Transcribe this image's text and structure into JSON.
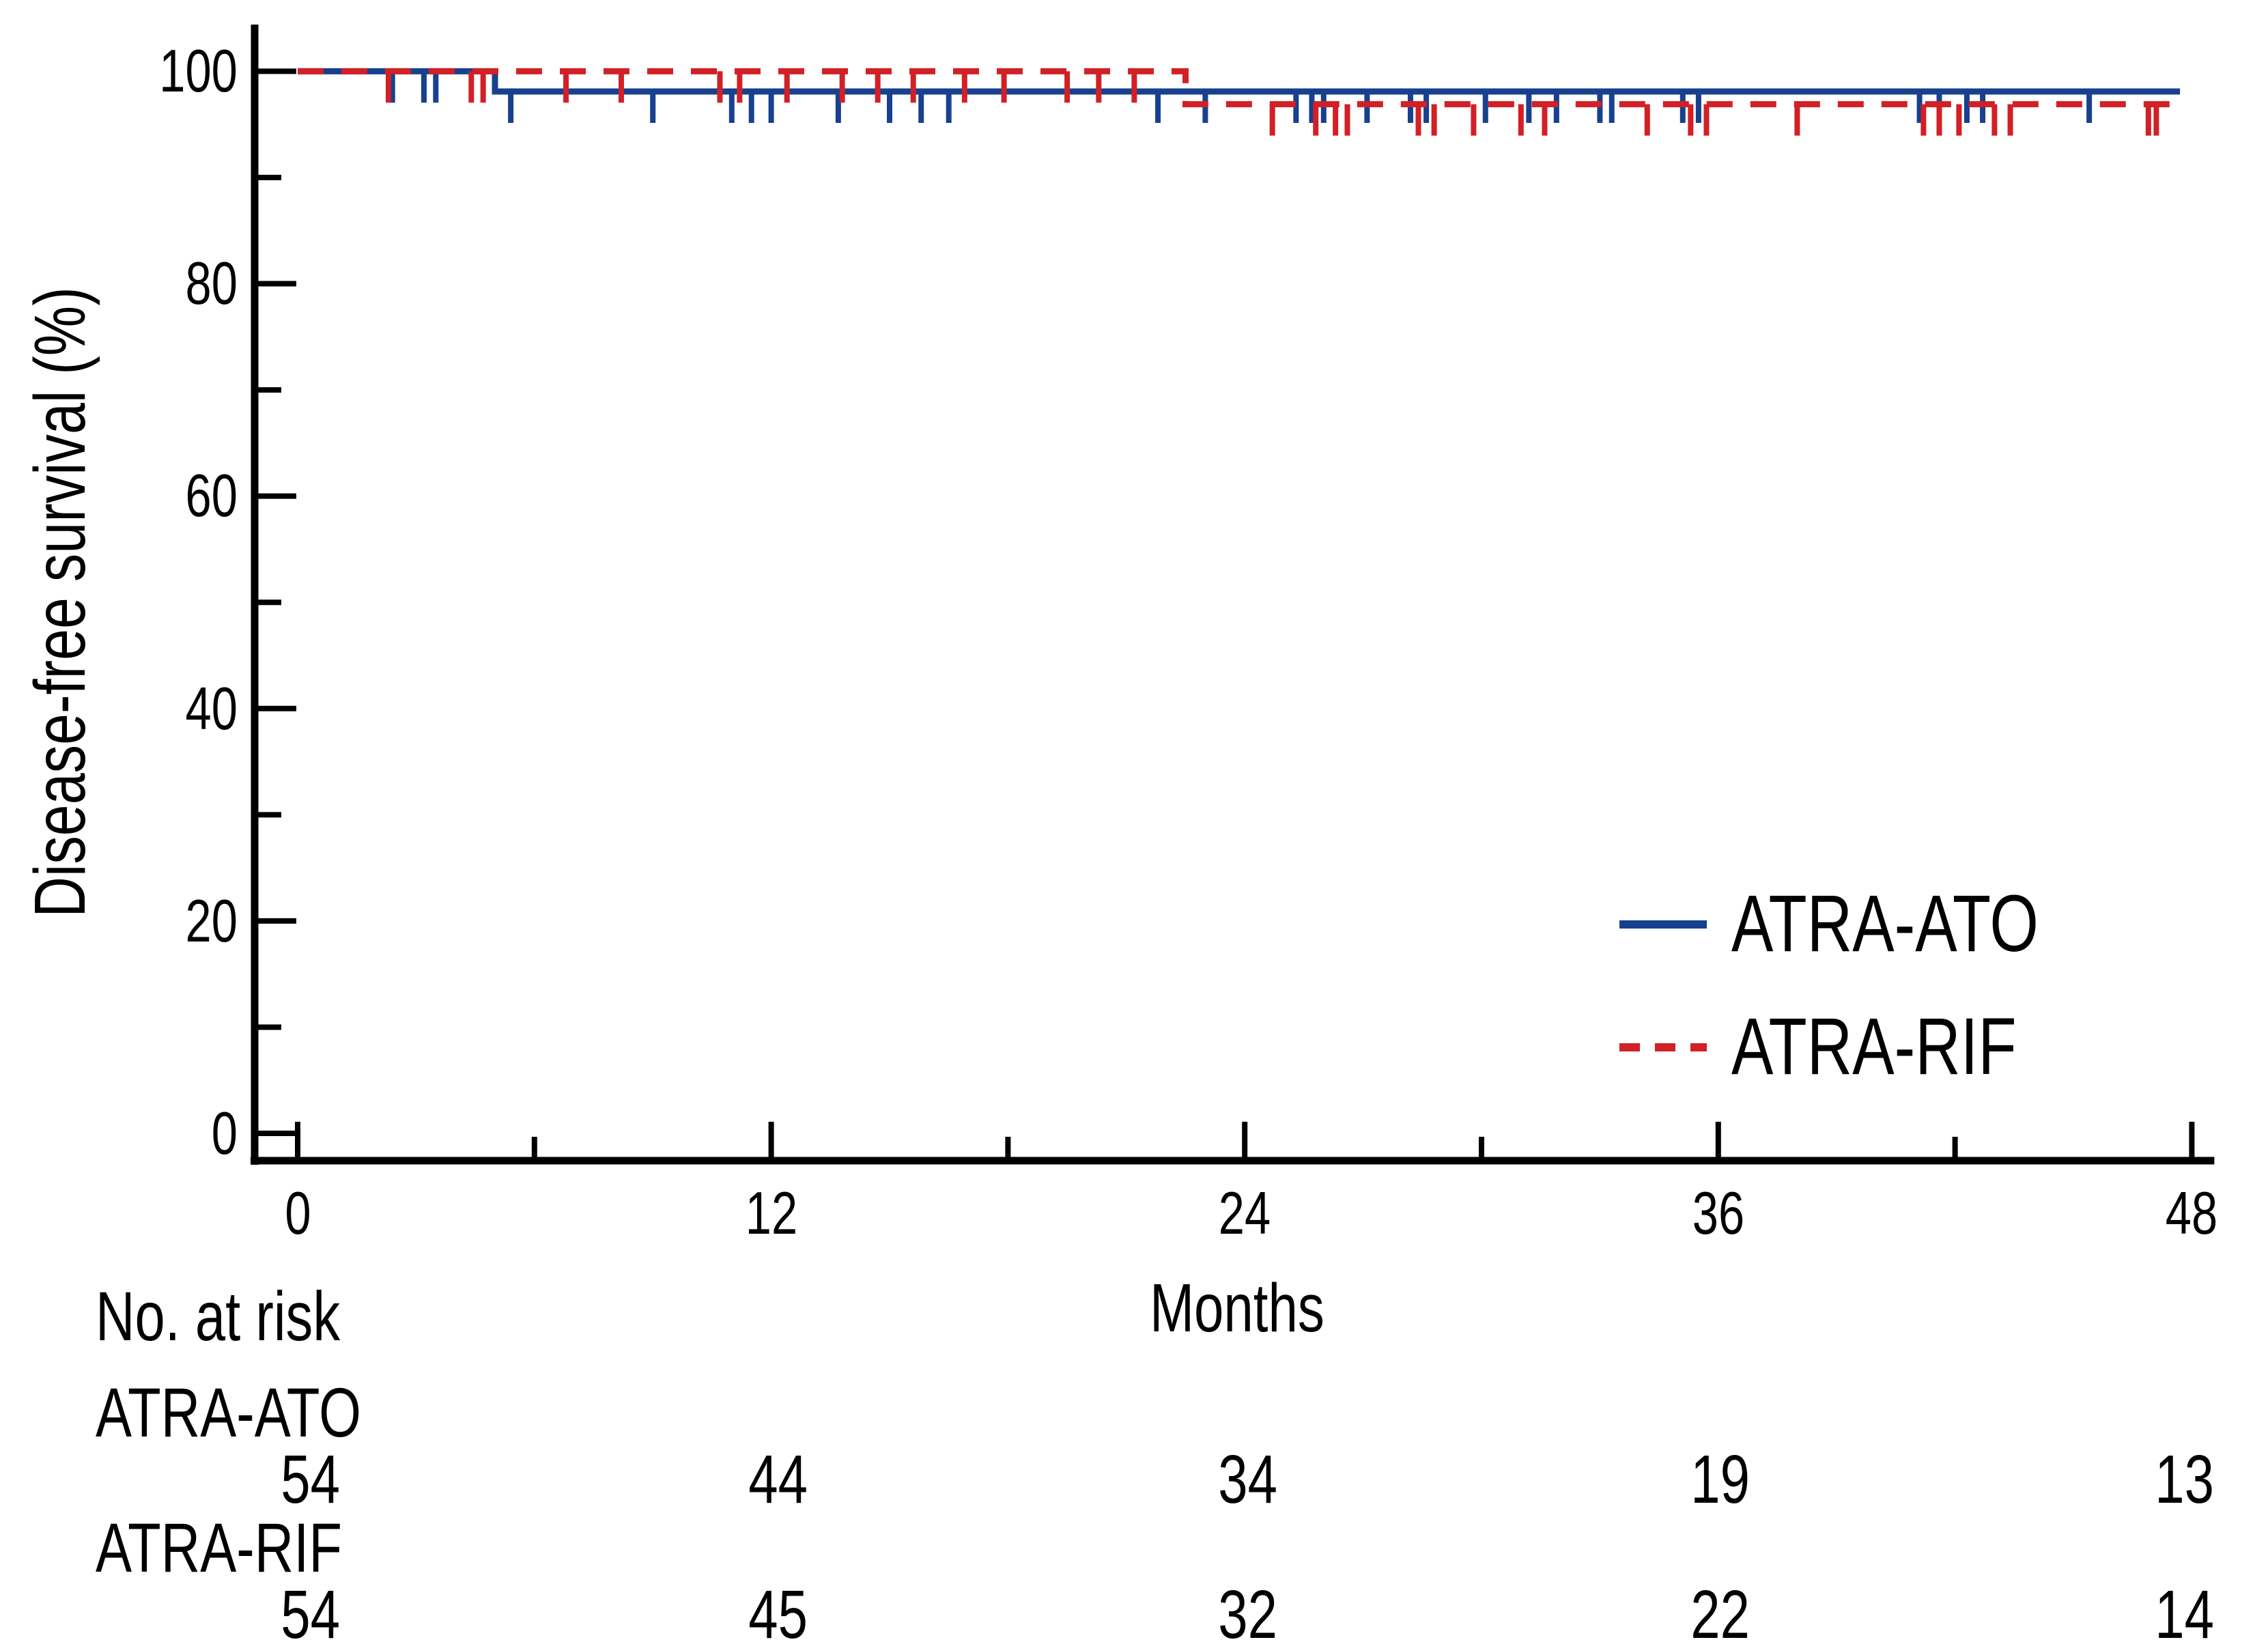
{
  "chart_data": {
    "type": "line",
    "subtype": "kaplan-meier-step",
    "title": "",
    "xlabel": "Months",
    "ylabel": "Disease-free survival (%)",
    "xlim": [
      0,
      48
    ],
    "ylim": [
      0,
      100
    ],
    "x_ticks": [
      0,
      12,
      24,
      36,
      48
    ],
    "x_minor_ticks": [
      6,
      18,
      30,
      42
    ],
    "y_ticks": [
      100,
      80,
      60,
      40,
      20,
      0
    ],
    "y_minor_ticks": [
      90,
      70,
      50,
      30,
      10
    ],
    "grid": false,
    "legend_position": "center-right",
    "axis_color": "#000000",
    "series": [
      {
        "name": "ATRA-ATO",
        "color": "#17418f",
        "line_style": "solid",
        "steps": [
          [
            0,
            100
          ],
          [
            5,
            100
          ],
          [
            5,
            98.1
          ],
          [
            47.7,
            98.1
          ]
        ],
        "censor_marks_months": [
          2.4,
          3.2,
          3.5,
          5.4,
          9.0,
          11.0,
          11.5,
          12.0,
          13.7,
          15.0,
          15.8,
          16.5,
          21.8,
          23.0,
          25.3,
          25.7,
          26.0,
          27.1,
          28.2,
          28.6,
          30.1,
          31.2,
          31.9,
          33.0,
          33.3,
          35.1,
          35.5,
          41.1,
          41.6,
          42.3,
          42.7,
          45.4
        ]
      },
      {
        "name": "ATRA-RIF",
        "color": "#d12026",
        "line_style": "dashed",
        "steps": [
          [
            0,
            100
          ],
          [
            22.5,
            100
          ],
          [
            22.5,
            96.9
          ],
          [
            47.7,
            96.9
          ]
        ],
        "censor_marks_months": [
          2.3,
          4.4,
          4.7,
          6.8,
          8.2,
          10.7,
          11.2,
          12.4,
          13.8,
          14.7,
          15.6,
          16.9,
          17.9,
          19.5,
          20.3,
          21.2,
          24.7,
          25.8,
          26.3,
          26.6,
          28.4,
          28.8,
          29.8,
          31.0,
          31.6,
          34.2,
          35.3,
          35.7,
          38.0,
          41.2,
          41.6,
          42.1,
          43.0,
          43.4,
          46.9,
          47.1
        ]
      }
    ],
    "risk_table": {
      "header": "No. at risk",
      "time_points": [
        0,
        12,
        24,
        36,
        48
      ],
      "rows": [
        {
          "label": "ATRA-ATO",
          "values": [
            54,
            44,
            34,
            19,
            13
          ]
        },
        {
          "label": "ATRA-RIF",
          "values": [
            54,
            45,
            32,
            22,
            14
          ]
        }
      ]
    }
  }
}
